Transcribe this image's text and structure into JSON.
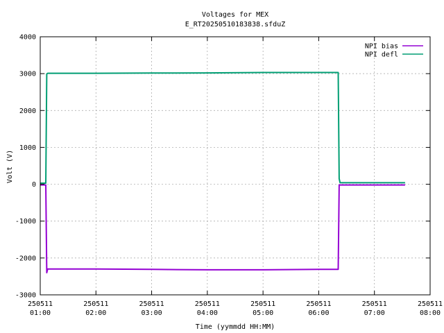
{
  "chart_data": {
    "type": "line",
    "title": "Voltages for MEX",
    "subtitle": "E_RT20250510183838.sfduZ",
    "xlabel": "Time (yymmdd HH:MM)",
    "ylabel": "Volt (V)",
    "xlim": [
      "250511 01:00",
      "250511 08:00"
    ],
    "ylim": [
      -3000,
      4000
    ],
    "grid": true,
    "legend_position": "top-right",
    "x_ticks": [
      {
        "date": "250511",
        "time": "01:00"
      },
      {
        "date": "250511",
        "time": "02:00"
      },
      {
        "date": "250511",
        "time": "03:00"
      },
      {
        "date": "250511",
        "time": "04:00"
      },
      {
        "date": "250511",
        "time": "05:00"
      },
      {
        "date": "250511",
        "time": "06:00"
      },
      {
        "date": "250511",
        "time": "07:00"
      },
      {
        "date": "250511",
        "time": "08:00"
      }
    ],
    "y_ticks": [
      "4000",
      "3000",
      "2000",
      "1000",
      "0",
      "-1000",
      "-2000",
      "-3000"
    ],
    "series": [
      {
        "name": "NPI bias",
        "color": "#9400d3",
        "points": [
          {
            "x": "250511 01:00",
            "y": -20
          },
          {
            "x": "250511 01:06",
            "y": -20
          },
          {
            "x": "250511 01:07",
            "y": -2400
          },
          {
            "x": "250511 01:08",
            "y": -2300
          },
          {
            "x": "250511 02:00",
            "y": -2300
          },
          {
            "x": "250511 03:00",
            "y": -2310
          },
          {
            "x": "250511 04:00",
            "y": -2320
          },
          {
            "x": "250511 05:00",
            "y": -2320
          },
          {
            "x": "250511 06:00",
            "y": -2310
          },
          {
            "x": "250511 06:21",
            "y": -2310
          },
          {
            "x": "250511 06:22",
            "y": -20
          },
          {
            "x": "250511 07:33",
            "y": -20
          }
        ]
      },
      {
        "name": "NPI defl",
        "color": "#009e73",
        "points": [
          {
            "x": "250511 01:00",
            "y": 30
          },
          {
            "x": "250511 01:06",
            "y": 30
          },
          {
            "x": "250511 01:07",
            "y": 2990
          },
          {
            "x": "250511 01:08",
            "y": 3010
          },
          {
            "x": "250511 02:00",
            "y": 3010
          },
          {
            "x": "250511 03:00",
            "y": 3015
          },
          {
            "x": "250511 04:00",
            "y": 3020
          },
          {
            "x": "250511 05:00",
            "y": 3030
          },
          {
            "x": "250511 06:00",
            "y": 3030
          },
          {
            "x": "250511 06:21",
            "y": 3030
          },
          {
            "x": "250511 06:22",
            "y": 150
          },
          {
            "x": "250511 06:23",
            "y": 40
          },
          {
            "x": "250511 07:33",
            "y": 40
          }
        ]
      }
    ]
  }
}
